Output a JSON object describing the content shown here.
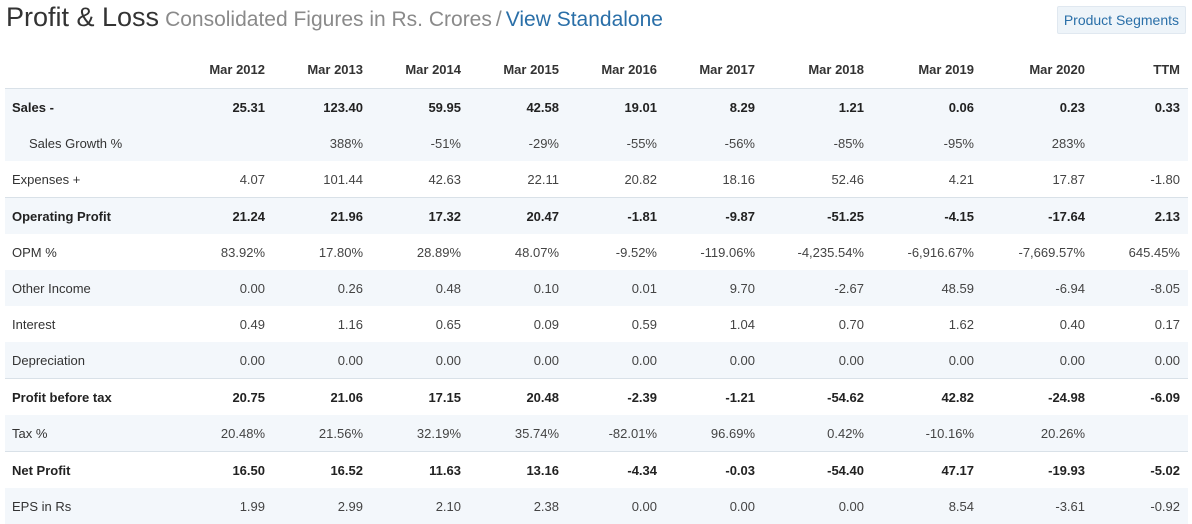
{
  "header": {
    "title": "Profit & Loss",
    "subtitle": "Consolidated Figures in Rs. Crores",
    "separator": "/",
    "standalone_link": "View Standalone",
    "segments_button": "Product Segments"
  },
  "table": {
    "columns": [
      "Mar 2012",
      "Mar 2013",
      "Mar 2014",
      "Mar 2015",
      "Mar 2016",
      "Mar 2017",
      "Mar 2018",
      "Mar 2019",
      "Mar 2020",
      "TTM"
    ],
    "rows": [
      {
        "label": "Sales -",
        "values": [
          "25.31",
          "123.40",
          "59.95",
          "42.58",
          "19.01",
          "8.29",
          "1.21",
          "0.06",
          "0.23",
          "0.33"
        ]
      },
      {
        "label": "Sales Growth %",
        "values": [
          "",
          "388%",
          "-51%",
          "-29%",
          "-55%",
          "-56%",
          "-85%",
          "-95%",
          "283%",
          ""
        ]
      },
      {
        "label": "Expenses +",
        "values": [
          "4.07",
          "101.44",
          "42.63",
          "22.11",
          "20.82",
          "18.16",
          "52.46",
          "4.21",
          "17.87",
          "-1.80"
        ]
      },
      {
        "label": "Operating Profit",
        "values": [
          "21.24",
          "21.96",
          "17.32",
          "20.47",
          "-1.81",
          "-9.87",
          "-51.25",
          "-4.15",
          "-17.64",
          "2.13"
        ]
      },
      {
        "label": "OPM %",
        "values": [
          "83.92%",
          "17.80%",
          "28.89%",
          "48.07%",
          "-9.52%",
          "-119.06%",
          "-4,235.54%",
          "-6,916.67%",
          "-7,669.57%",
          "645.45%"
        ]
      },
      {
        "label": "Other Income",
        "values": [
          "0.00",
          "0.26",
          "0.48",
          "0.10",
          "0.01",
          "9.70",
          "-2.67",
          "48.59",
          "-6.94",
          "-8.05"
        ]
      },
      {
        "label": "Interest",
        "values": [
          "0.49",
          "1.16",
          "0.65",
          "0.09",
          "0.59",
          "1.04",
          "0.70",
          "1.62",
          "0.40",
          "0.17"
        ]
      },
      {
        "label": "Depreciation",
        "values": [
          "0.00",
          "0.00",
          "0.00",
          "0.00",
          "0.00",
          "0.00",
          "0.00",
          "0.00",
          "0.00",
          "0.00"
        ]
      },
      {
        "label": "Profit before tax",
        "values": [
          "20.75",
          "21.06",
          "17.15",
          "20.48",
          "-2.39",
          "-1.21",
          "-54.62",
          "42.82",
          "-24.98",
          "-6.09"
        ]
      },
      {
        "label": "Tax %",
        "values": [
          "20.48%",
          "21.56%",
          "32.19%",
          "35.74%",
          "-82.01%",
          "96.69%",
          "0.42%",
          "-10.16%",
          "20.26%",
          ""
        ]
      },
      {
        "label": "Net Profit",
        "values": [
          "16.50",
          "16.52",
          "11.63",
          "13.16",
          "-4.34",
          "-0.03",
          "-54.40",
          "47.17",
          "-19.93",
          "-5.02"
        ]
      },
      {
        "label": "EPS in Rs",
        "values": [
          "1.99",
          "2.99",
          "2.10",
          "2.38",
          "0.00",
          "0.00",
          "0.00",
          "8.54",
          "-3.61",
          "-0.92"
        ]
      }
    ]
  }
}
